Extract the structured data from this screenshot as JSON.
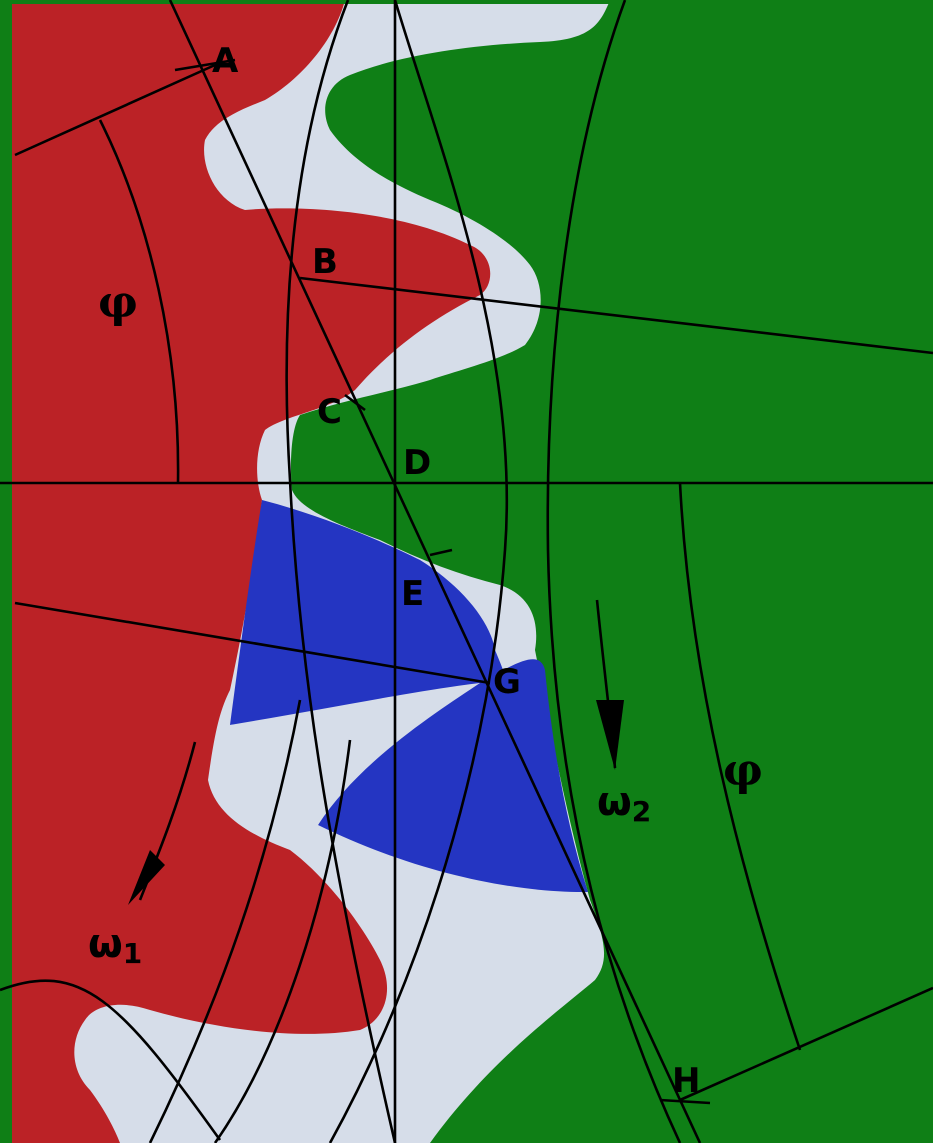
{
  "colors": {
    "gear1": "#bb2226",
    "gear2": "#0f7f16",
    "contact_zone": "#2435c2",
    "gap": "#d6dde9",
    "lines": "#000000"
  },
  "points": {
    "A": "A",
    "B": "B",
    "C": "C",
    "D": "D",
    "E": "E",
    "G": "G",
    "H": "H"
  },
  "angles": {
    "left": "φ",
    "right": "φ"
  },
  "omega": {
    "one_sym": "ω",
    "one_sub": "1",
    "two_sym": "ω",
    "two_sub": "2"
  }
}
